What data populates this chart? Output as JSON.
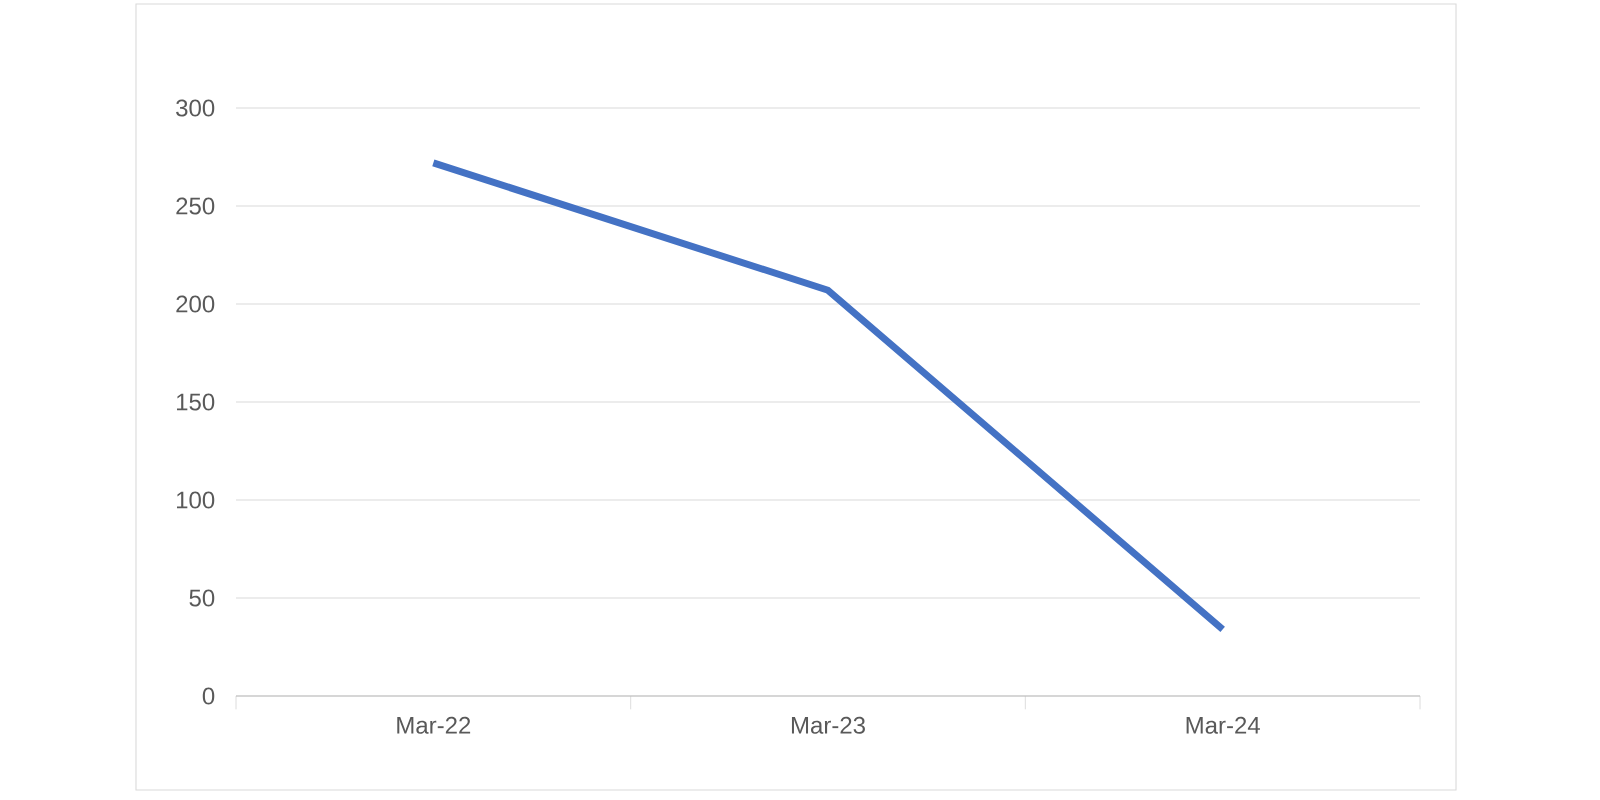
{
  "chart_data": {
    "type": "line",
    "categories": [
      "Mar-22",
      "Mar-23",
      "Mar-24"
    ],
    "series": [
      {
        "color": "#4472c4",
        "values": [
          272,
          207,
          34
        ]
      }
    ],
    "ylim": [
      0,
      300
    ],
    "yticks": [
      0,
      50,
      100,
      150,
      200,
      250,
      300
    ],
    "grid": "y",
    "marker": "none",
    "line_style": "solid"
  }
}
